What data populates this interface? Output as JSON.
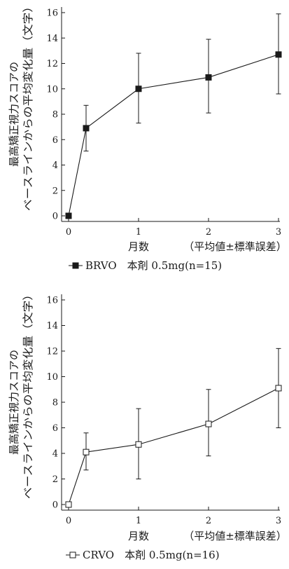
{
  "chart_data": [
    {
      "type": "line",
      "ylabel_lines": [
        "最高矯正視力スコアの",
        "ベースラインからの平均変化量（文字）"
      ],
      "xlabel": "月数",
      "x_note": "（平均値±標準誤差）",
      "x": [
        0,
        0.25,
        1,
        2,
        3
      ],
      "x_ticks": [
        0,
        1,
        2,
        3
      ],
      "y_ticks": [
        0,
        2,
        4,
        6,
        8,
        10,
        12,
        14,
        16
      ],
      "ylim": [
        0,
        16
      ],
      "xlim": [
        0,
        3
      ],
      "grid": false,
      "series": [
        {
          "name": "BRVO　本剤 0.5mg(n=15)",
          "legend_marker": "—■—",
          "marker": "filled-square",
          "values": [
            0,
            6.9,
            10.0,
            10.9,
            12.7
          ],
          "error_low": [
            0,
            5.1,
            7.3,
            8.1,
            9.6
          ],
          "error_high": [
            0,
            8.7,
            12.8,
            13.9,
            15.9
          ]
        }
      ],
      "legend_placement": "bottom-center"
    },
    {
      "type": "line",
      "ylabel_lines": [
        "最高矯正視力スコアの",
        "ベースラインからの平均変化量（文字）"
      ],
      "xlabel": "月数",
      "x_note": "（平均値±標準誤差）",
      "x": [
        0,
        0.25,
        1,
        2,
        3
      ],
      "x_ticks": [
        0,
        1,
        2,
        3
      ],
      "y_ticks": [
        0,
        2,
        4,
        6,
        8,
        10,
        12,
        14,
        16
      ],
      "ylim": [
        0,
        16
      ],
      "xlim": [
        0,
        3
      ],
      "grid": false,
      "series": [
        {
          "name": "CRVO　本剤 0.5mg(n=16)",
          "legend_marker": "—□—",
          "marker": "open-square",
          "values": [
            0,
            4.1,
            4.7,
            6.3,
            9.1
          ],
          "error_low": [
            0,
            2.7,
            2.0,
            3.8,
            6.0
          ],
          "error_high": [
            0,
            5.6,
            7.5,
            9.0,
            12.2
          ]
        }
      ],
      "legend_placement": "bottom-center"
    }
  ]
}
